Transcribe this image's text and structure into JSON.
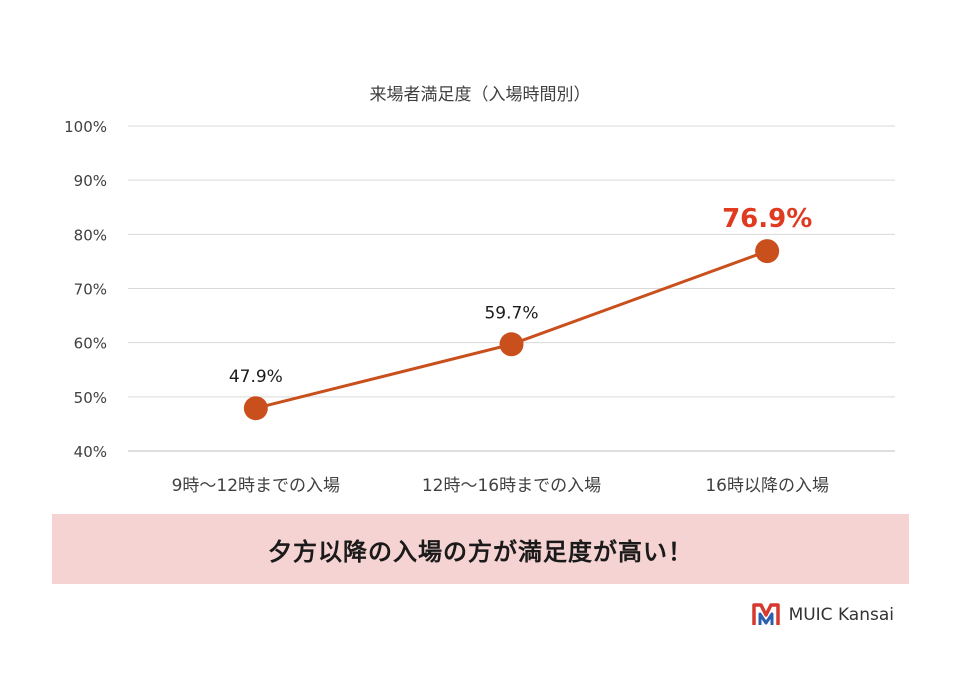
{
  "chart_data": {
    "type": "line",
    "title": "来場者満足度（入場時間別）",
    "categories": [
      "9時～12時までの入場",
      "12時～16時までの入場",
      "16時以降の入場"
    ],
    "series": [
      {
        "values": [
          47.9,
          59.7,
          76.9
        ],
        "labels": [
          "47.9%",
          "59.7%",
          "76.9%"
        ]
      }
    ],
    "ylim": [
      40,
      100
    ],
    "yticks": [
      40,
      50,
      60,
      70,
      80,
      90,
      100
    ],
    "ytick_labels": [
      "40%",
      "50%",
      "60%",
      "70%",
      "80%",
      "90%",
      "100%"
    ],
    "grid": true,
    "line_color": "#c9501c",
    "highlight_color": "#e03a20",
    "highlight_index": 2
  },
  "banner": {
    "text": "夕方以降の入場の方が満足度が高い！"
  },
  "brand": {
    "name": "MUIC Kansai"
  }
}
